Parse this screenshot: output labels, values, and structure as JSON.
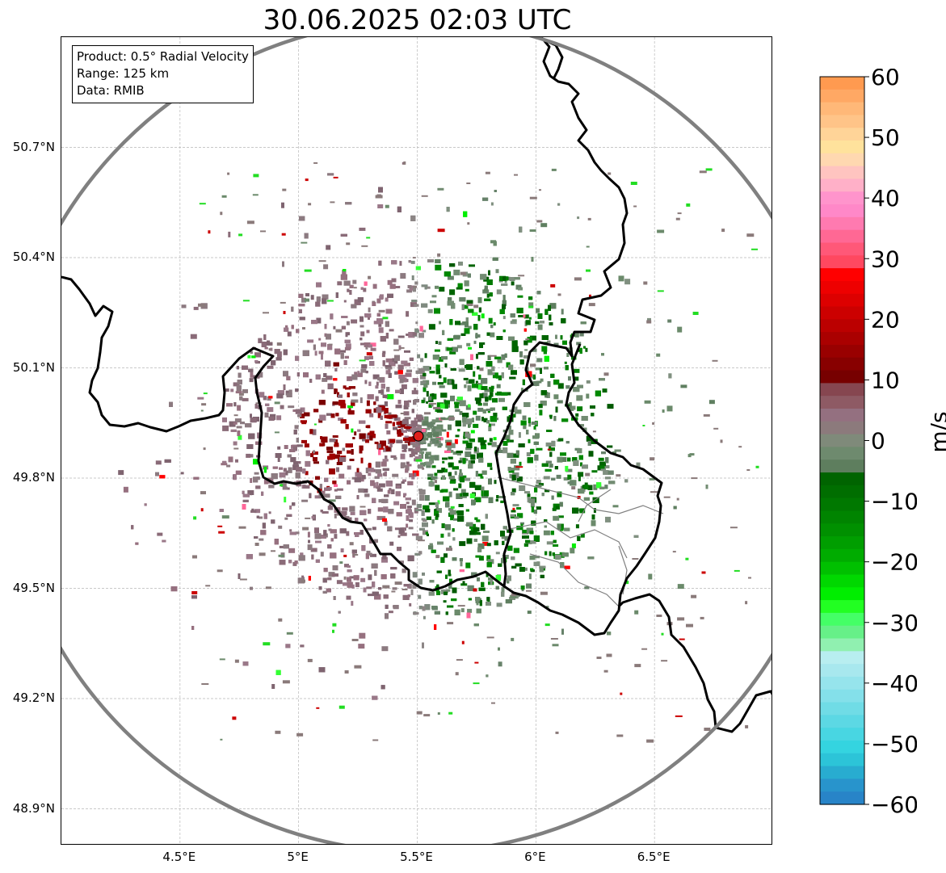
{
  "title": "30.06.2025 02:03 UTC",
  "info_box": {
    "product": "Product: 0.5° Radial Velocity",
    "range": "Range: 125 km",
    "data": "Data: RMIB"
  },
  "map": {
    "lon_range": [
      4.0,
      7.0
    ],
    "lat_range": [
      48.8,
      51.0
    ],
    "lat_ticks": [
      "50.7°N",
      "50.4°N",
      "50.1°N",
      "49.8°N",
      "49.5°N",
      "49.2°N",
      "48.9°N"
    ],
    "lat_tick_values": [
      50.7,
      50.4,
      50.1,
      49.8,
      49.5,
      49.2,
      48.9
    ],
    "lon_ticks": [
      "4.5°E",
      "5°E",
      "5.5°E",
      "6°E",
      "6.5°E"
    ],
    "lon_tick_values": [
      4.5,
      5.0,
      5.5,
      6.0,
      6.5
    ],
    "radar_site": {
      "lon": 5.505,
      "lat": 49.914
    },
    "range_km": 125,
    "colors": {
      "range_ring": "#808080",
      "border": "#000000",
      "admin": "#808080",
      "site_marker": "#e0201c"
    }
  },
  "colorbar": {
    "unit": "m/s",
    "min": -60,
    "max": 60,
    "ticks": [
      "60",
      "50",
      "40",
      "30",
      "20",
      "10",
      "0",
      "−10",
      "−20",
      "−30",
      "−40",
      "−50",
      "−60"
    ],
    "tick_values": [
      60,
      50,
      40,
      30,
      20,
      10,
      0,
      -10,
      -20,
      -30,
      -40,
      -50,
      -60
    ]
  }
}
